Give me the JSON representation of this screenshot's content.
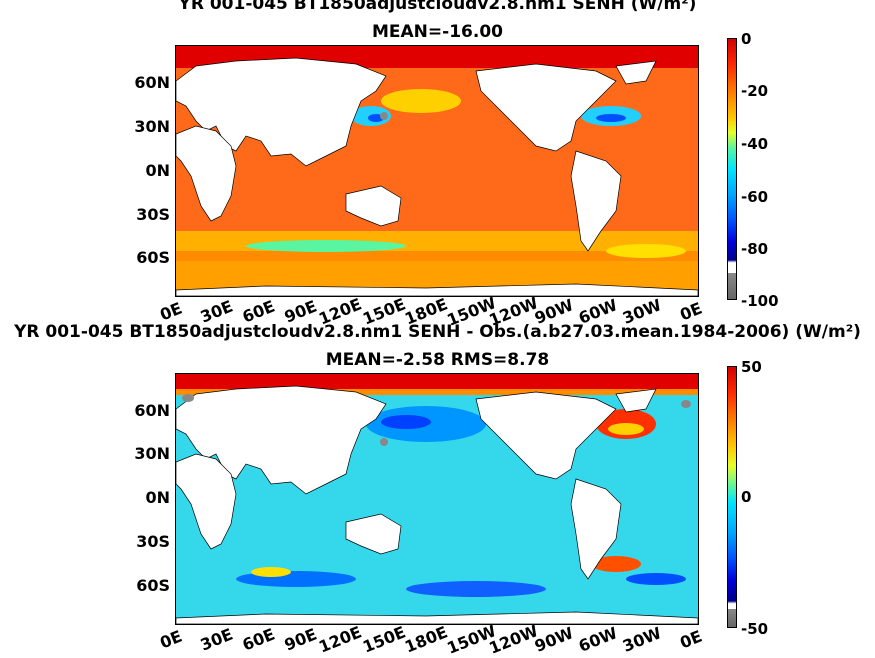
{
  "panel_top": {
    "title": "YR 001-045 BT1850adjustcloudv2.8.nm1 SENH (W/m²)",
    "subtitle": "MEAN=-16.00",
    "colorbar_ticks": [
      "0",
      "-20",
      "-40",
      "-60",
      "-80",
      "-100"
    ]
  },
  "panel_bottom": {
    "title": "YR 001-045 BT1850adjustcloudv2.8.nm1 SENH - Obs.(a.b27.03.mean.1984-2006) (W/m²)",
    "subtitle": "MEAN=-2.58 RMS=8.78",
    "colorbar_ticks": [
      "50",
      "0",
      "-50"
    ]
  },
  "lat_labels": [
    "60N",
    "30N",
    "0N",
    "30S",
    "60S"
  ],
  "lon_labels": [
    "0E",
    "30E",
    "60E",
    "90E",
    "120E",
    "150E",
    "180E",
    "150W",
    "120W",
    "90W",
    "60W",
    "30W",
    "0E"
  ],
  "colors": {
    "ocean_top": "#ff6a1a",
    "ocean_bottom": "#35d7ea",
    "land": "#ffffff",
    "colormap": [
      "#6e0000",
      "#ff0000",
      "#ff8c00",
      "#ffff00",
      "#3fff9a",
      "#00e5ff",
      "#0064ff",
      "#00008b",
      "#888888"
    ]
  }
}
